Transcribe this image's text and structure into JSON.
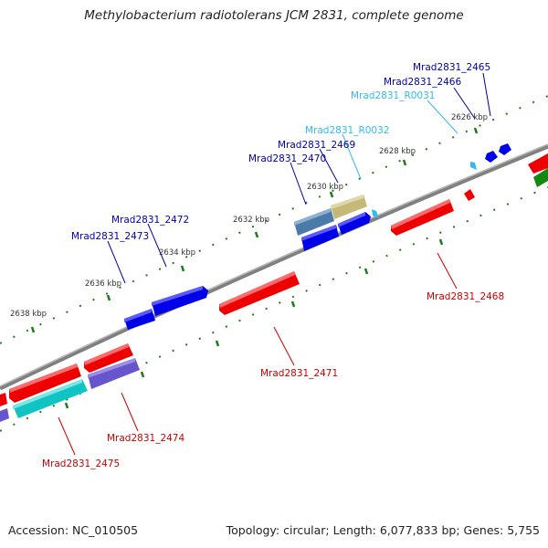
{
  "title": "Methylobacterium radiotolerans JCM 2831, complete genome",
  "footer": {
    "accession": "Accession: NC_010505",
    "summary": "Topology: circular; Length: 6,077,833 bp; Genes: 5,755"
  },
  "colors": {
    "forward_cds": "#0000e8",
    "reverse_cds": "#ee0000",
    "rna": "#33bbee",
    "backbone": "#777777",
    "ticks": "#227722"
  },
  "ticks": [
    "2626 kbp",
    "2628 kbp",
    "2630 kbp",
    "2632 kbp",
    "2634 kbp",
    "2636 kbp",
    "2638 kbp"
  ],
  "genes": [
    {
      "name": "Mrad2831_2465",
      "strand": "forward"
    },
    {
      "name": "Mrad2831_2466",
      "strand": "forward"
    },
    {
      "name": "Mrad2831_R0031",
      "strand": "rna"
    },
    {
      "name": "Mrad2831_R0032",
      "strand": "rna"
    },
    {
      "name": "Mrad2831_2469",
      "strand": "forward"
    },
    {
      "name": "Mrad2831_2470",
      "strand": "forward"
    },
    {
      "name": "Mrad2831_2472",
      "strand": "forward"
    },
    {
      "name": "Mrad2831_2473",
      "strand": "forward"
    },
    {
      "name": "Mrad2831_2468",
      "strand": "reverse"
    },
    {
      "name": "Mrad2831_2471",
      "strand": "reverse"
    },
    {
      "name": "Mrad2831_2474",
      "strand": "reverse"
    },
    {
      "name": "Mrad2831_2475",
      "strand": "reverse"
    }
  ]
}
